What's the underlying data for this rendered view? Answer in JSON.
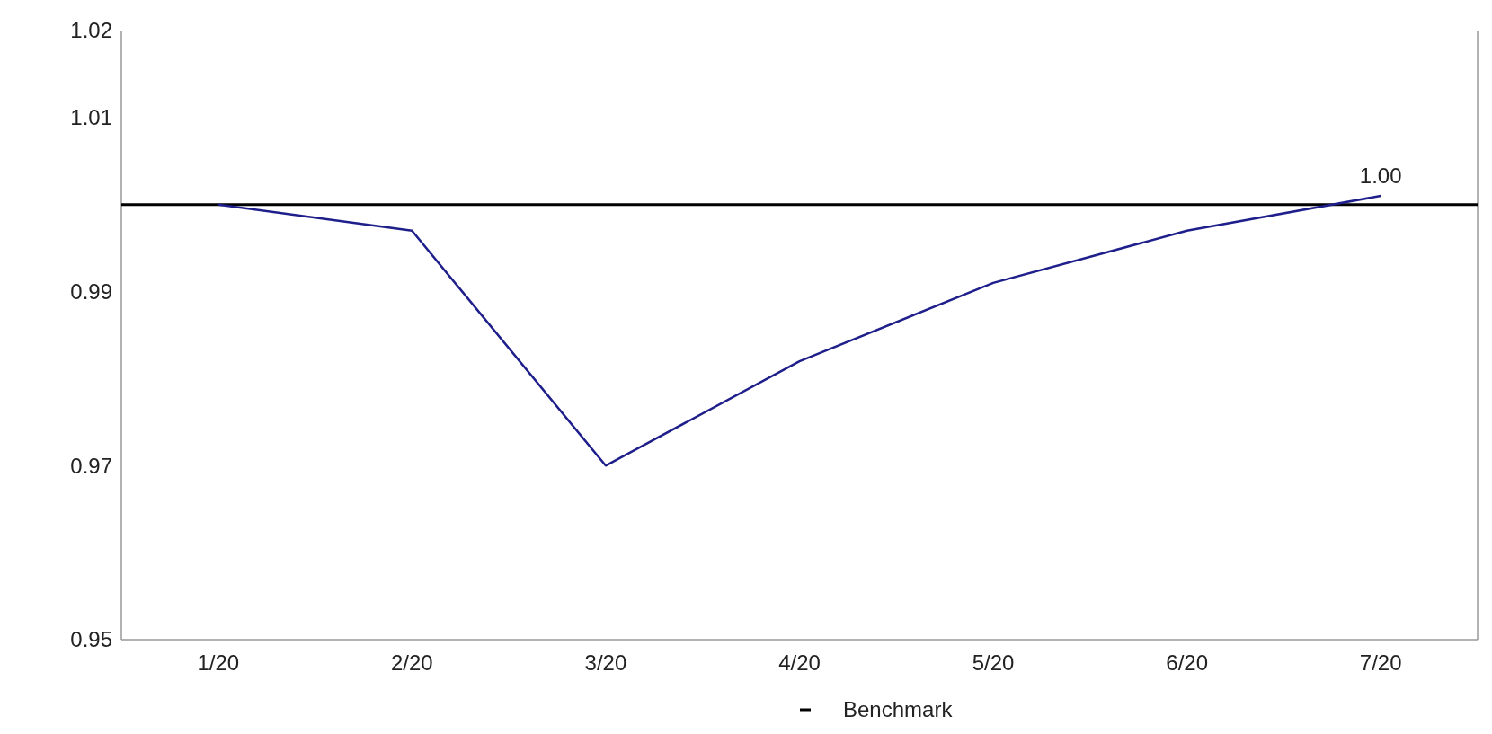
{
  "chart_data": {
    "type": "line",
    "categories": [
      "1/20",
      "2/20",
      "3/20",
      "4/20",
      "5/20",
      "6/20",
      "7/20"
    ],
    "series": [
      {
        "color": "#1f1f8c",
        "values": [
          1.0,
          0.997,
          0.97,
          0.982,
          0.991,
          0.997,
          1.001
        ],
        "value_labels": [
          null,
          null,
          null,
          null,
          null,
          null,
          "1.00"
        ]
      }
    ],
    "ref_lines": [
      {
        "axis": "y",
        "value": 1.0,
        "label": "Benchmark",
        "color": "#000000"
      }
    ],
    "ylim": [
      0.95,
      1.02
    ],
    "yticks": [
      0.95,
      0.97,
      0.99,
      1.01,
      1.02
    ],
    "grid": false,
    "legend": "bottom"
  }
}
